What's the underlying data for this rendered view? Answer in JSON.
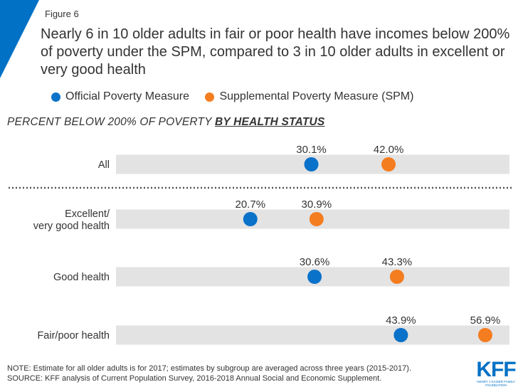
{
  "figure_label": "Figure 6",
  "title": "Nearly 6 in 10 older adults in fair or poor health have incomes below 200% of poverty under the SPM, compared to 3 in 10 older adults in excellent or very good health",
  "subtitle_prefix": "PERCENT BELOW 200% OF POVERTY ",
  "subtitle_emphasis": "BY HEALTH STATUS",
  "note_line1": "NOTE: Estimate for all older adults is for 2017; estimates by subgroup are averaged across three years (2015-2017).",
  "note_line2": "SOURCE: KFF analysis of Current Population Survey, 2016-2018 Annual Social and Economic Supplement.",
  "logo": {
    "text": "KFF",
    "subtext": "HENRY J KAISER FAMILY FOUNDATION"
  },
  "colors": {
    "official": "#0a72c9",
    "spm": "#f47d20",
    "band": "#e3e3e3",
    "accent": "#0071c5"
  },
  "chart_data": {
    "type": "dot",
    "title": "Nearly 6 in 10 older adults in fair or poor health have incomes below 200% of poverty under the SPM, compared to 3 in 10 older adults in excellent or very good health",
    "subtitle": "PERCENT BELOW 200% OF POVERTY BY HEALTH STATUS",
    "categories": [
      "All",
      "Excellent/\nvery good health",
      "Good health",
      "Fair/poor health"
    ],
    "series": [
      {
        "name": "Official Poverty Measure",
        "values": [
          30.1,
          20.7,
          30.6,
          43.9
        ],
        "labels": [
          "30.1%",
          "20.7%",
          "30.6%",
          "43.9%"
        ]
      },
      {
        "name": "Supplemental Poverty Measure (SPM)",
        "values": [
          42.0,
          30.9,
          43.3,
          56.9
        ],
        "labels": [
          "42.0%",
          "30.9%",
          "43.3%",
          "56.9%"
        ]
      }
    ],
    "xlim": [
      0,
      60
    ],
    "legend_position": "top",
    "grid": false
  }
}
